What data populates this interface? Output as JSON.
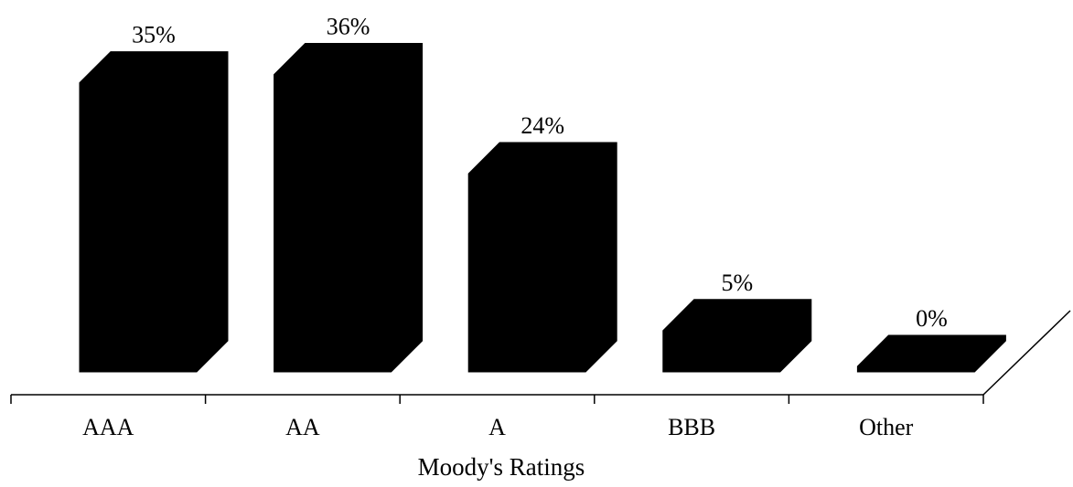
{
  "chart_data": {
    "type": "bar",
    "style": "3d",
    "categories": [
      "AAA",
      "AA",
      "A",
      "BBB",
      "Other"
    ],
    "values": [
      35,
      36,
      24,
      5,
      0
    ],
    "value_labels": [
      "35%",
      "36%",
      "24%",
      "5%",
      "0%"
    ],
    "xlabel": "Moody's Ratings",
    "ylabel": "",
    "ylim": [
      0,
      36
    ],
    "unit": "%",
    "grid": false,
    "legend": "none",
    "bar_color": "#000000"
  }
}
